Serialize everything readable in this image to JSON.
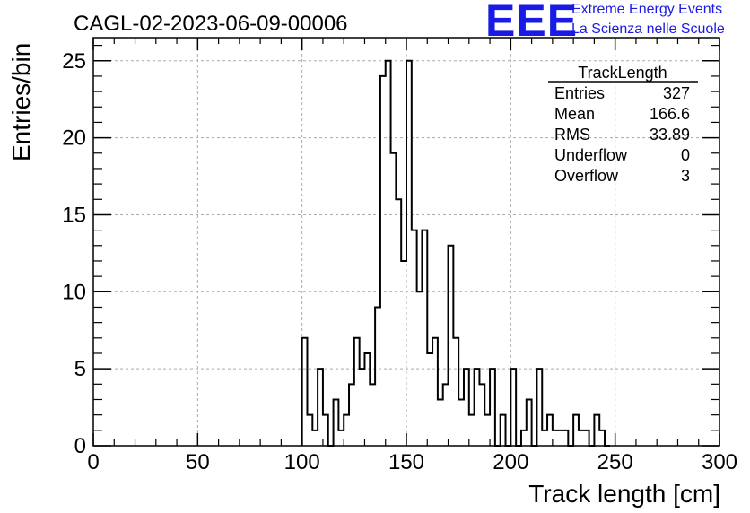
{
  "run_title": "CAGL-02-2023-06-09-00006",
  "logo": {
    "mark": "EEE",
    "line1": "Extreme Energy Events",
    "line2": "La Scienza nelle Scuole",
    "color": "#1a1ae6"
  },
  "stats": {
    "title": "TrackLength",
    "rows": [
      {
        "label": "Entries",
        "value": "327"
      },
      {
        "label": "Mean",
        "value": "166.6"
      },
      {
        "label": "RMS",
        "value": "33.89"
      },
      {
        "label": "Underflow",
        "value": "0"
      },
      {
        "label": "Overflow",
        "value": "3"
      }
    ]
  },
  "chart_data": {
    "type": "histogram",
    "xlabel": "Track length [cm]",
    "ylabel": "Entries/bin",
    "xlim": [
      0,
      300
    ],
    "ylim": [
      0,
      26.5
    ],
    "x_ticks": [
      "0",
      "50",
      "100",
      "150",
      "200",
      "250",
      "300"
    ],
    "y_ticks": [
      "0",
      "5",
      "10",
      "15",
      "20",
      "25"
    ],
    "grid": true,
    "bin_width": 2.5,
    "bins_start": 100,
    "counts": [
      7,
      2,
      1,
      5,
      2,
      0,
      3,
      1,
      2,
      4,
      7,
      5,
      6,
      4,
      9,
      24,
      25,
      19,
      16,
      12,
      25,
      14,
      10,
      14,
      6,
      7,
      3,
      4,
      13,
      7,
      3,
      5,
      2,
      5,
      4,
      2,
      5,
      0,
      2,
      0,
      5,
      0,
      1,
      3,
      0,
      5,
      1,
      2,
      1,
      1,
      1,
      0,
      2,
      1,
      1,
      0,
      2,
      1,
      0
    ]
  }
}
